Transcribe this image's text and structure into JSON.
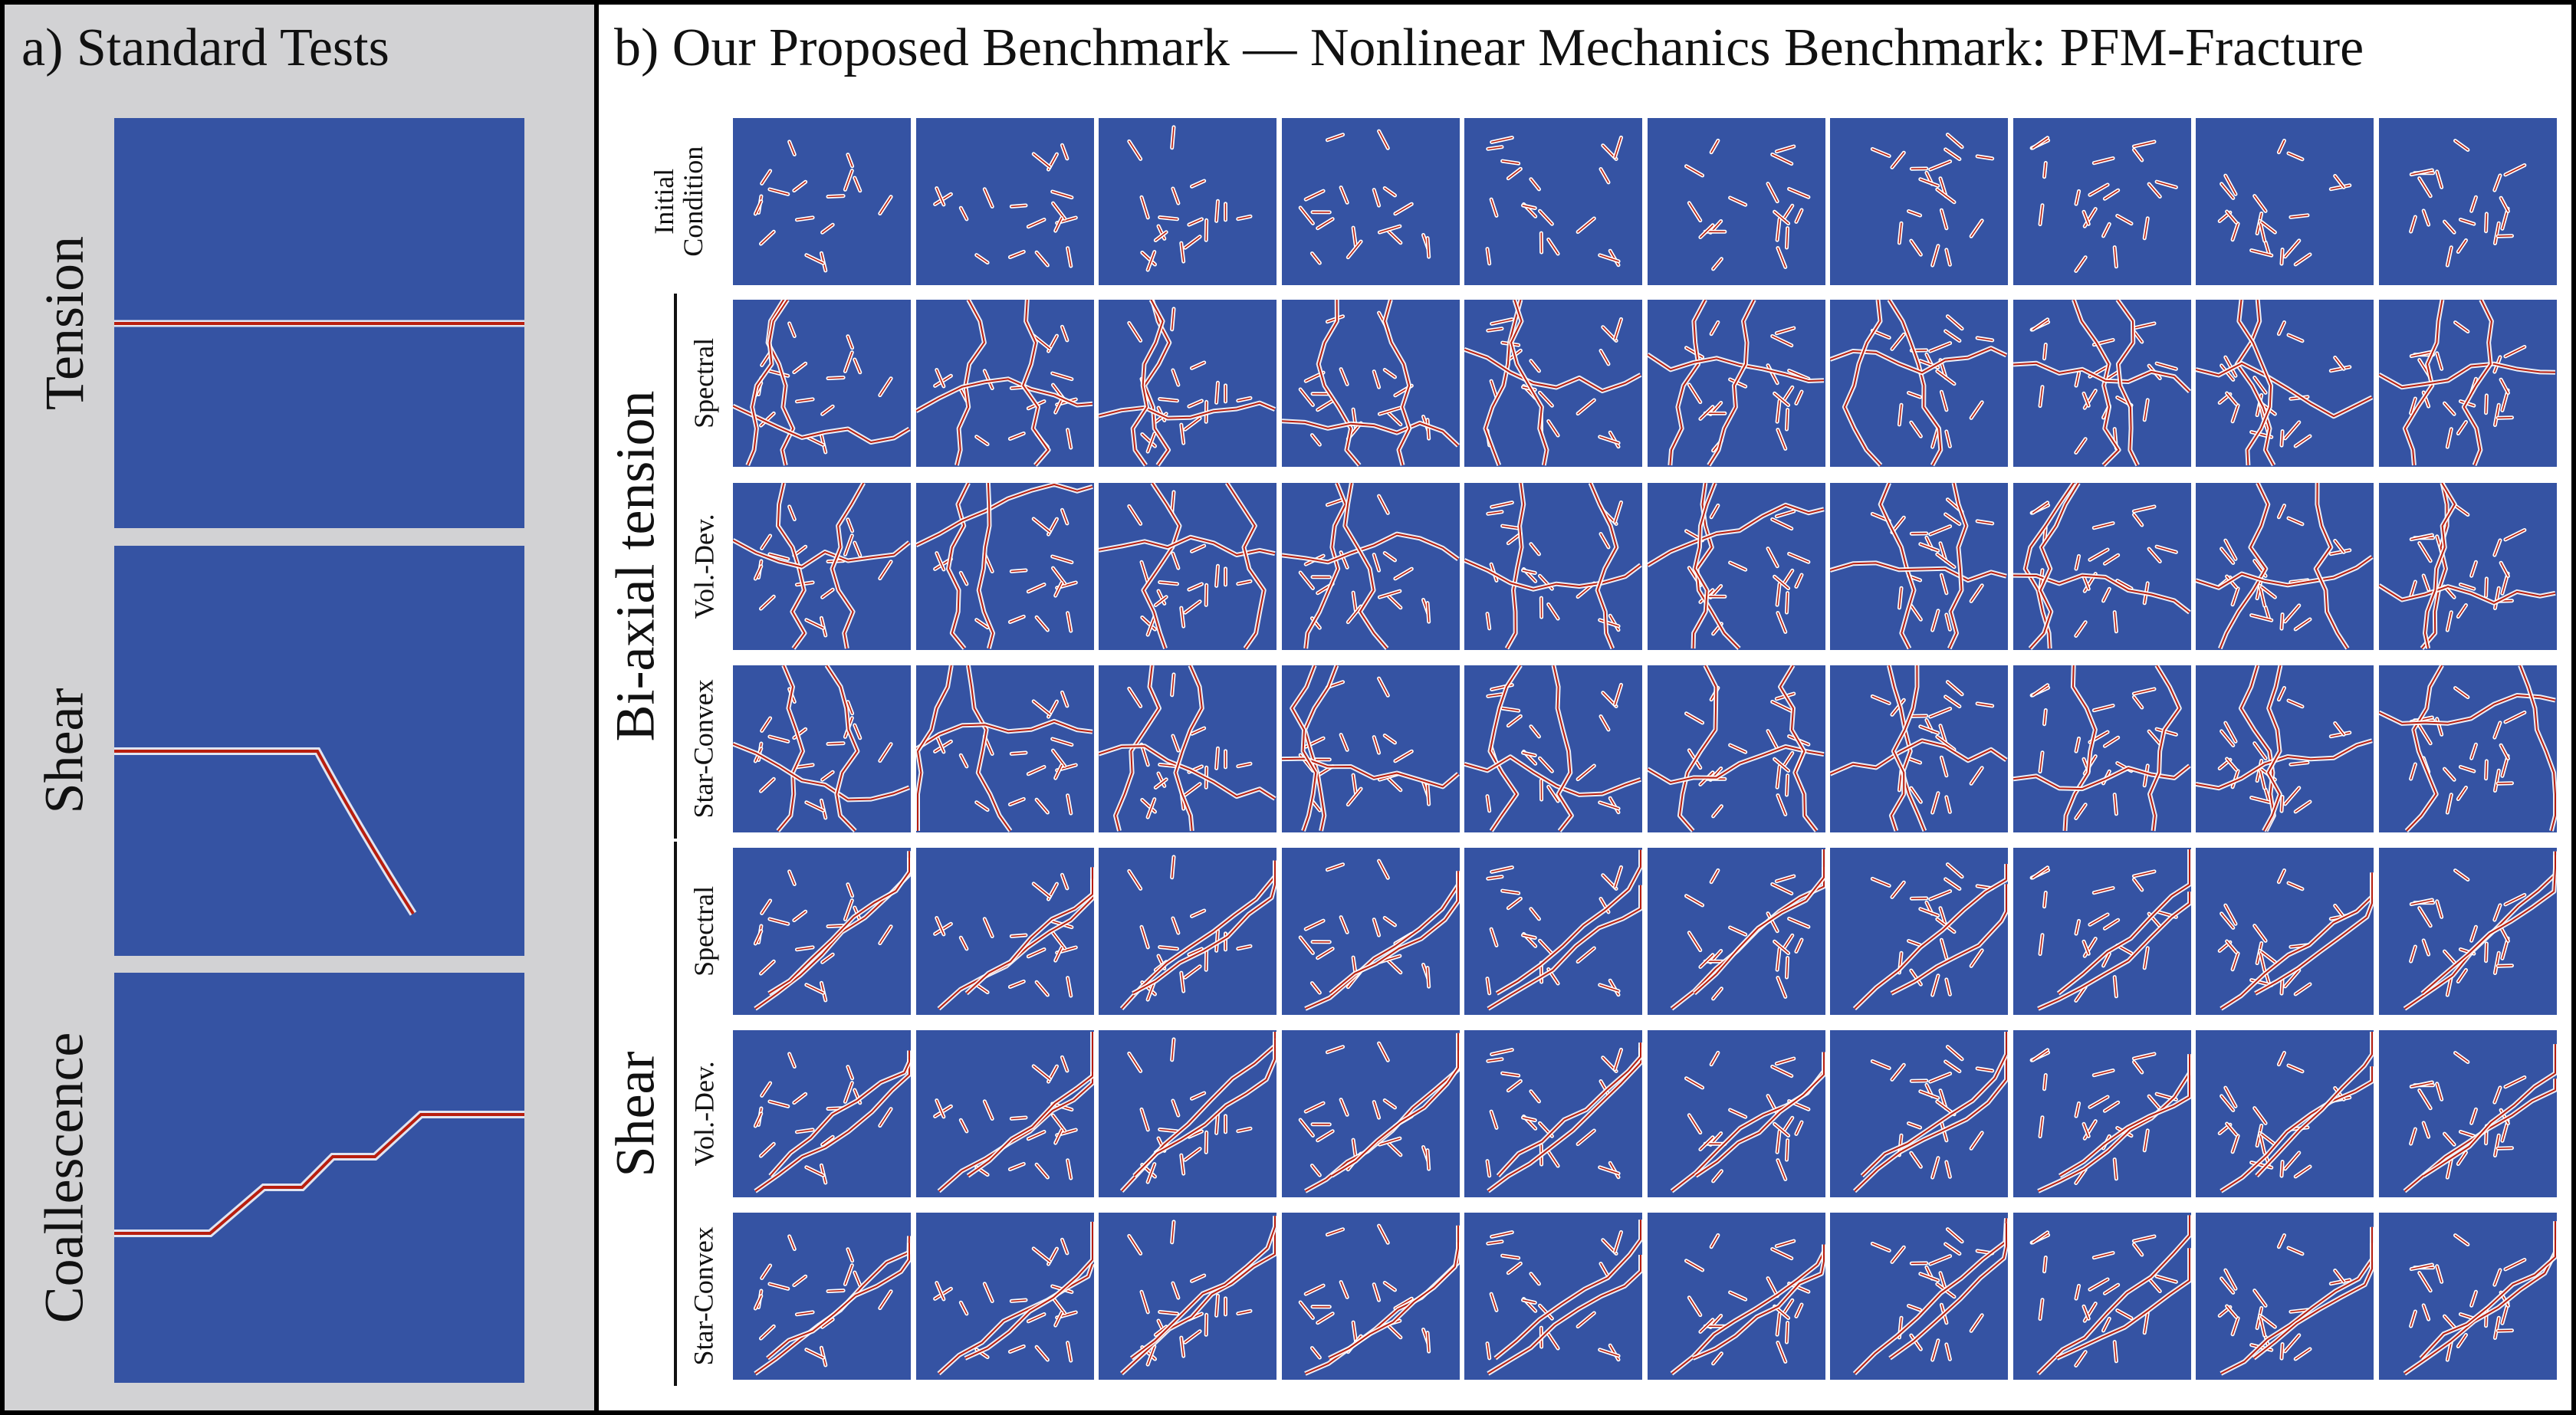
{
  "panel_a": {
    "title": "a) Standard Tests",
    "tests": [
      "Tension",
      "Shear",
      "Coallescence"
    ]
  },
  "panel_b": {
    "title": "b) Our Proposed Benchmark — Nonlinear Mechanics Benchmark: PFM-Fracture",
    "initial_label": "Initial Condition",
    "groups": [
      {
        "name": "Bi-axial tension",
        "rows": [
          "Spectral",
          "Vol.-Dev.",
          "Star-Convex"
        ]
      },
      {
        "name": "Shear",
        "rows": [
          "Spectral",
          "Vol.-Dev.",
          "Star-Convex"
        ]
      }
    ],
    "columns": 10
  },
  "colors": {
    "field_background": "#3553a3",
    "crack_core": "#b81e0f",
    "crack_halo": "#ffffff",
    "panel_a_background": "#d2d2d4"
  }
}
